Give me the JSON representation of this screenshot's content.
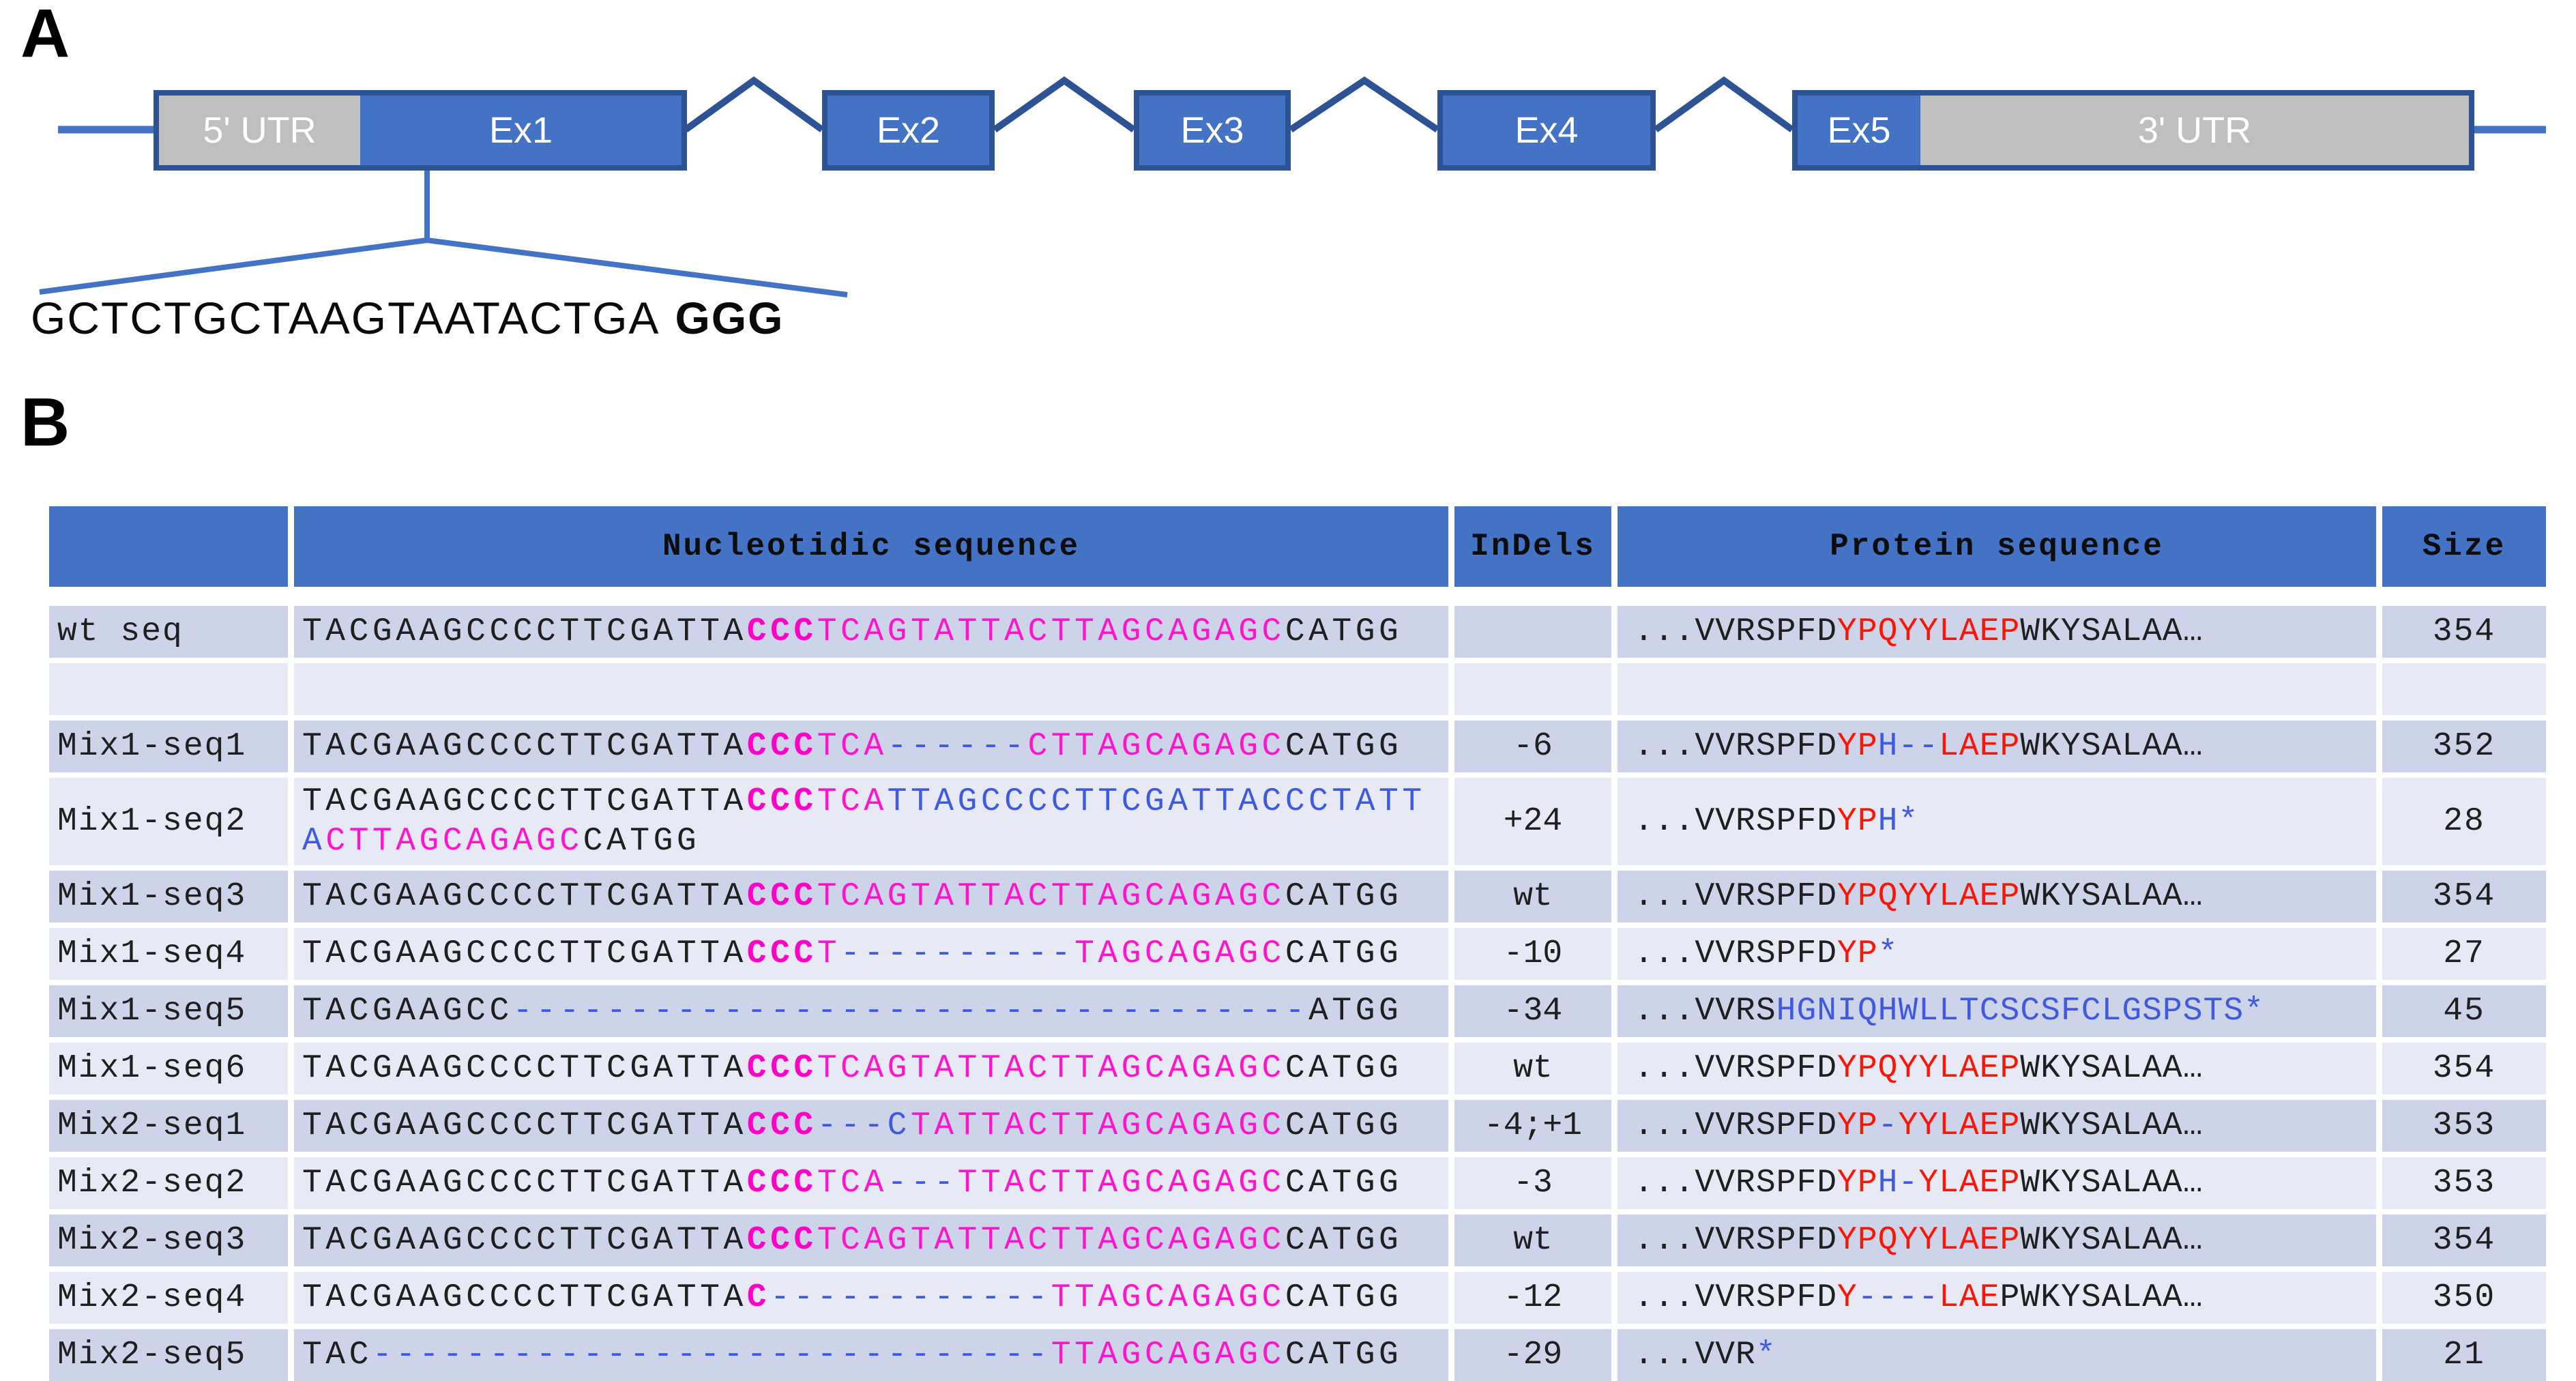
{
  "colors": {
    "header_bg": "#4472C4",
    "row_dark": "#CDD3E8",
    "row_light": "#E7EAF4",
    "exon_fill": "#4472C4",
    "utr_fill": "#BFBFBF",
    "box_border": "#2E5395",
    "magenta": "#FF14CE",
    "pam_magenta_bold": "#FF00C8",
    "indel_blue": "#3F5AE1",
    "protein_red": "#FA1505"
  },
  "panel_a": {
    "label": "A",
    "utr5": "5' UTR",
    "exons": [
      "Ex1",
      "Ex2",
      "Ex3",
      "Ex4",
      "Ex5"
    ],
    "utr3": "3' UTR",
    "zoom_sequence": "GCTCTGCTAAGTAATACTGA",
    "pam": "GGG"
  },
  "panel_b": {
    "label": "B",
    "headers": {
      "name": "",
      "nt": "Nucleotidic sequence",
      "indels": "InDels",
      "protein": "Protein sequence",
      "size": "Size"
    },
    "rows": [
      {
        "name": "wt seq",
        "shade": "dark",
        "indels": "",
        "size": "354",
        "nt": [
          [
            "k",
            "TACGAAGCCCCTTCGATTA"
          ],
          [
            "mb",
            "CCC"
          ],
          [
            "m",
            "TCAGTATTACTTAGCAGAGC"
          ],
          [
            "k",
            "CATGG"
          ]
        ],
        "protein": [
          [
            "k",
            "...VVRSPFD"
          ],
          [
            "r",
            "YPQYYLAEP"
          ],
          [
            "k",
            "WKYSALAA…"
          ]
        ]
      },
      {
        "name": "",
        "shade": "light",
        "indels": "",
        "size": "",
        "nt": [],
        "protein": []
      },
      {
        "name": "Mix1-seq1",
        "shade": "dark",
        "indels": "-6",
        "size": "352",
        "nt": [
          [
            "k",
            "TACGAAGCCCCTTCGATTA"
          ],
          [
            "mb",
            "CCC"
          ],
          [
            "m",
            "TCA"
          ],
          [
            "b",
            "------"
          ],
          [
            "m",
            "CTTAGCAGAGC"
          ],
          [
            "k",
            "CATGG"
          ]
        ],
        "protein": [
          [
            "k",
            "...VVRSPFD"
          ],
          [
            "r",
            "YP"
          ],
          [
            "b",
            "H--"
          ],
          [
            "r",
            "LAEP"
          ],
          [
            "k",
            "WKYSALAA…"
          ]
        ]
      },
      {
        "name": "Mix1-seq2",
        "shade": "light",
        "indels": "+24",
        "size": "28",
        "nt": [
          [
            "k",
            "TACGAAGCCCCTTCGATTA"
          ],
          [
            "mb",
            "CCC"
          ],
          [
            "m",
            "TCA"
          ],
          [
            "b",
            "TTAGCCCCTTCGATTACCCTATTA"
          ],
          [
            "m",
            "CTTAGCAGAGC"
          ],
          [
            "k",
            "CATGG"
          ]
        ],
        "protein": [
          [
            "k",
            "...VVRSPFD"
          ],
          [
            "r",
            "YP"
          ],
          [
            "b",
            "H*"
          ]
        ]
      },
      {
        "name": "Mix1-seq3",
        "shade": "dark",
        "indels": "wt",
        "size": "354",
        "nt": [
          [
            "k",
            "TACGAAGCCCCTTCGATTA"
          ],
          [
            "mb",
            "CCC"
          ],
          [
            "m",
            "TCAGTATTACTTAGCAGAGC"
          ],
          [
            "k",
            "CATGG"
          ]
        ],
        "protein": [
          [
            "k",
            "...VVRSPFD"
          ],
          [
            "r",
            "YPQYYLAEP"
          ],
          [
            "k",
            "WKYSALAA…"
          ]
        ]
      },
      {
        "name": "Mix1-seq4",
        "shade": "light",
        "indels": "-10",
        "size": "27",
        "nt": [
          [
            "k",
            "TACGAAGCCCCTTCGATTA"
          ],
          [
            "mb",
            "CCC"
          ],
          [
            "m",
            "T"
          ],
          [
            "b",
            "----------"
          ],
          [
            "m",
            "TAGCAGAGC"
          ],
          [
            "k",
            "CATGG"
          ]
        ],
        "protein": [
          [
            "k",
            "...VVRSPFD"
          ],
          [
            "r",
            "YP"
          ],
          [
            "b",
            "*"
          ]
        ]
      },
      {
        "name": "Mix1-seq5",
        "shade": "dark",
        "indels": "-34",
        "size": "45",
        "nt": [
          [
            "k",
            "TACGAAGCC"
          ],
          [
            "b",
            "----------------------------------"
          ],
          [
            "k",
            "ATGG"
          ]
        ],
        "protein": [
          [
            "k",
            "...VVRS"
          ],
          [
            "b",
            "HGNIQHWLLTCSCSFCLGSPSTS*"
          ]
        ]
      },
      {
        "name": "Mix1-seq6",
        "shade": "light",
        "indels": "wt",
        "size": "354",
        "nt": [
          [
            "k",
            "TACGAAGCCCCTTCGATTA"
          ],
          [
            "mb",
            "CCC"
          ],
          [
            "m",
            "TCAGTATTACTTAGCAGAGC"
          ],
          [
            "k",
            "CATGG"
          ]
        ],
        "protein": [
          [
            "k",
            "...VVRSPFD"
          ],
          [
            "r",
            "YPQYYLAEP"
          ],
          [
            "k",
            "WKYSALAA…"
          ]
        ]
      },
      {
        "name": "Mix2-seq1",
        "shade": "dark",
        "indels": "-4;+1",
        "size": "353",
        "nt": [
          [
            "k",
            "TACGAAGCCCCTTCGATTA"
          ],
          [
            "mb",
            "CCC"
          ],
          [
            "b",
            "---C"
          ],
          [
            "m",
            "TATTACTTAGCAGAGC"
          ],
          [
            "k",
            "CATGG"
          ]
        ],
        "protein": [
          [
            "k",
            "...VVRSPFD"
          ],
          [
            "r",
            "YP"
          ],
          [
            "b",
            "-"
          ],
          [
            "r",
            "YYLAEP"
          ],
          [
            "k",
            "WKYSALAA…"
          ]
        ]
      },
      {
        "name": "Mix2-seq2",
        "shade": "light",
        "indels": "-3",
        "size": "353",
        "nt": [
          [
            "k",
            "TACGAAGCCCCTTCGATTA"
          ],
          [
            "mb",
            "CCC"
          ],
          [
            "m",
            "TCA"
          ],
          [
            "b",
            "---"
          ],
          [
            "m",
            "TTACTTAGCAGAGC"
          ],
          [
            "k",
            "CATGG"
          ]
        ],
        "protein": [
          [
            "k",
            "...VVRSPFD"
          ],
          [
            "r",
            "YP"
          ],
          [
            "b",
            "H-"
          ],
          [
            "r",
            "YLAEP"
          ],
          [
            "k",
            "WKYSALAA…"
          ]
        ]
      },
      {
        "name": "Mix2-seq3",
        "shade": "dark",
        "indels": "wt",
        "size": "354",
        "nt": [
          [
            "k",
            "TACGAAGCCCCTTCGATTA"
          ],
          [
            "mb",
            "CCC"
          ],
          [
            "m",
            "TCAGTATTACTTAGCAGAGC"
          ],
          [
            "k",
            "CATGG"
          ]
        ],
        "protein": [
          [
            "k",
            "...VVRSPFD"
          ],
          [
            "r",
            "YPQYYLAEP"
          ],
          [
            "k",
            "WKYSALAA…"
          ]
        ]
      },
      {
        "name": "Mix2-seq4",
        "shade": "light",
        "indels": "-12",
        "size": "350",
        "nt": [
          [
            "k",
            "TACGAAGCCCCTTCGATTA"
          ],
          [
            "mb",
            "C"
          ],
          [
            "b",
            "------------"
          ],
          [
            "m",
            "TTAGCAGAGC"
          ],
          [
            "k",
            "CATGG"
          ]
        ],
        "protein": [
          [
            "k",
            "...VVRSPFD"
          ],
          [
            "r",
            "Y"
          ],
          [
            "b",
            "----"
          ],
          [
            "r",
            "LAE"
          ],
          [
            "k",
            "PWKYSALAA…"
          ]
        ]
      },
      {
        "name": "Mix2-seq5",
        "shade": "dark",
        "indels": "-29",
        "size": "21",
        "nt": [
          [
            "k",
            "TAC"
          ],
          [
            "b",
            "-----------------------------"
          ],
          [
            "m",
            "TTAGCAGAGC"
          ],
          [
            "k",
            "CATGG"
          ]
        ],
        "protein": [
          [
            "k",
            "...VVR"
          ],
          [
            "b",
            "*"
          ]
        ]
      }
    ]
  }
}
